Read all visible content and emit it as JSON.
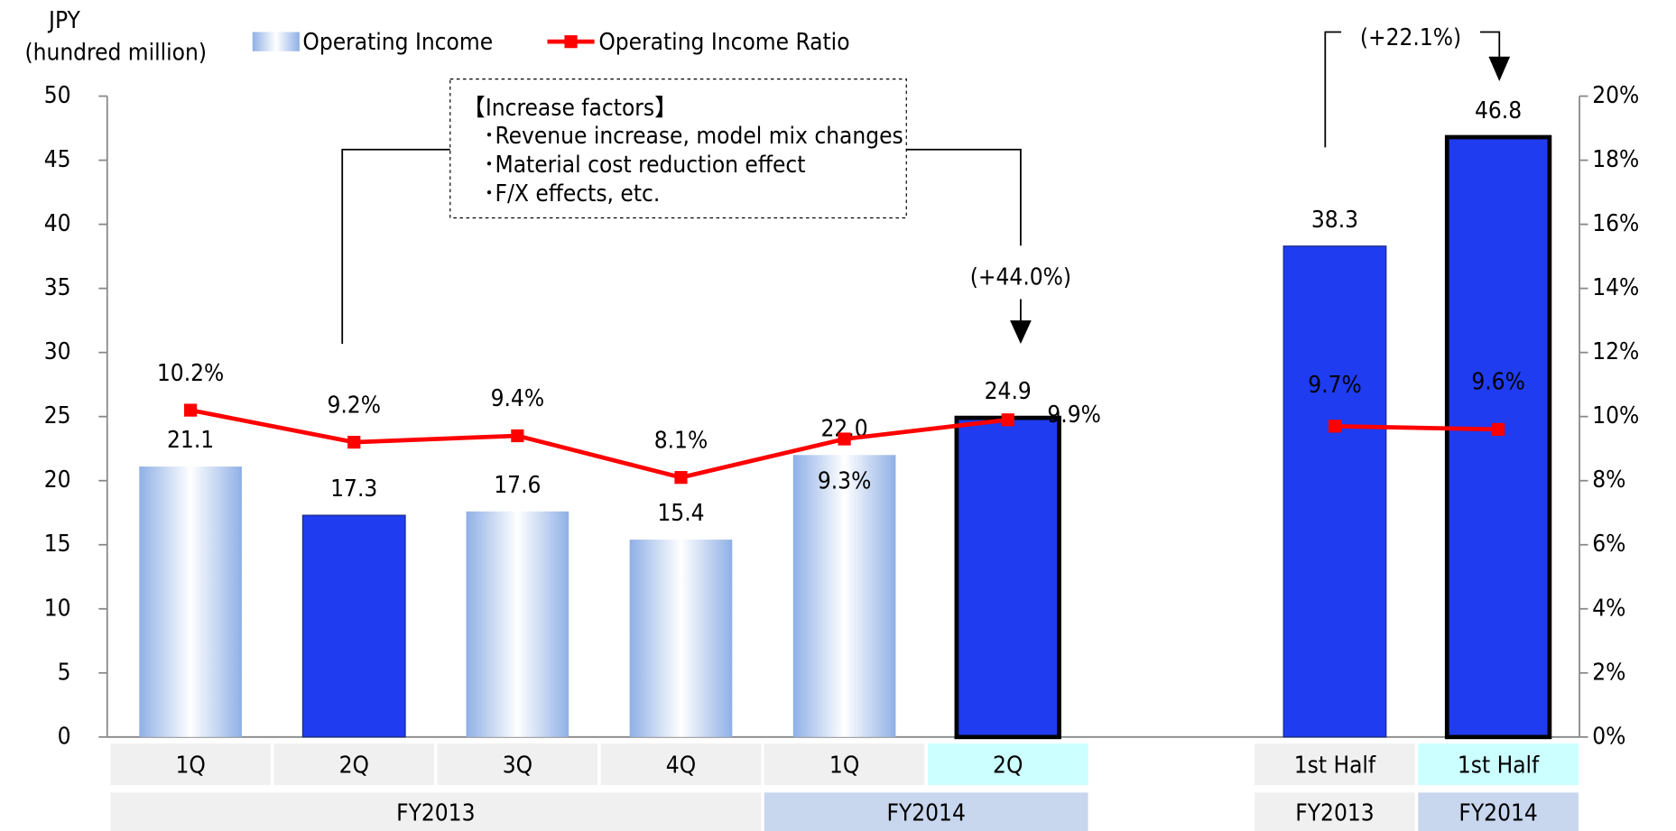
{
  "chart_data": {
    "type": "bar",
    "y_axis_label": [
      "JPY",
      "(hundred million)"
    ],
    "categories": [
      "1Q",
      "2Q",
      "3Q",
      "4Q",
      "1Q",
      "2Q",
      null,
      "1st Half",
      "1st Half"
    ],
    "groups": [
      "FY2013",
      "FY2014",
      "FY2013",
      "FY2014"
    ],
    "series": [
      {
        "name": "Operating Income",
        "color": "#1f3cf0",
        "light_color": "#8fb0e6",
        "bar_styles": [
          "gradient",
          "solid",
          "gradient",
          "gradient",
          "gradient",
          "solid-outlined",
          null,
          "solid",
          "solid-outlined"
        ],
        "values": [
          21.1,
          17.3,
          17.6,
          15.4,
          22.0,
          24.9,
          null,
          38.3,
          46.8
        ],
        "value_labels": [
          "21.1",
          "17.3",
          "17.6",
          "15.4",
          "22.0",
          "24.9",
          null,
          "38.3",
          "46.8"
        ]
      },
      {
        "name": "Operating Income Ratio",
        "color": "#ff0000",
        "axis": "y2",
        "values": [
          10.2,
          9.2,
          9.4,
          8.1,
          9.3,
          9.9,
          null,
          9.7,
          9.6
        ],
        "value_labels": [
          "10.2%",
          "9.2%",
          "9.4%",
          "8.1%",
          "9.3%",
          "9.9%",
          null,
          "9.7%",
          "9.6%"
        ]
      }
    ],
    "ylim": [
      0,
      50
    ],
    "yticks": [
      0,
      5,
      10,
      15,
      20,
      25,
      30,
      35,
      40,
      45,
      50
    ],
    "y2lim": [
      0,
      20
    ],
    "y2ticks": [
      {
        "value": 0,
        "label": "0%"
      },
      {
        "value": 2,
        "label": "2%"
      },
      {
        "value": 4,
        "label": "4%"
      },
      {
        "value": 6,
        "label": "6%"
      },
      {
        "value": 8,
        "label": "8%"
      },
      {
        "value": 10,
        "label": "10%"
      },
      {
        "value": 12,
        "label": "12%"
      },
      {
        "value": 14,
        "label": "14%"
      },
      {
        "value": 16,
        "label": "16%"
      },
      {
        "value": 18,
        "label": "18%"
      },
      {
        "value": 20,
        "label": "20%"
      }
    ],
    "legend": "top",
    "annotations": {
      "factors": [
        "【Increase factors】",
        "･Revenue increase, model mix changes",
        "･Material cost reduction effect",
        "･F/X effects, etc."
      ],
      "quarter_growth": "(+44.0%)",
      "half_growth": "(+22.1%)"
    }
  }
}
